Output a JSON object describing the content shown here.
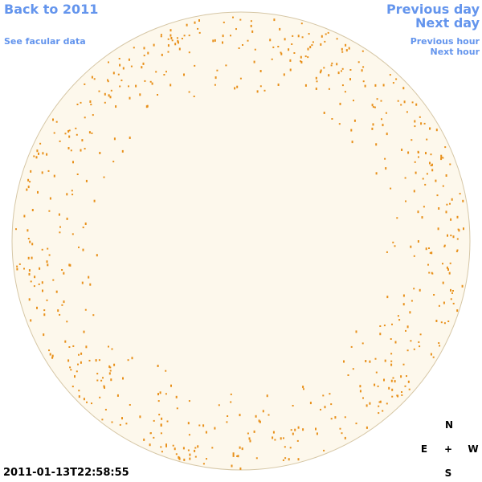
{
  "links": {
    "back": "Back to 2011",
    "facular": "See facular data",
    "previous_day": "Previous day",
    "next_day": "Next day",
    "previous_hour": "Previous hour",
    "next_hour": "Next hour"
  },
  "timestamp": "2011-01-13T22:58:55",
  "compass": {
    "north": "N",
    "east": "E",
    "center": "+",
    "west": "W",
    "south": "S"
  }
}
